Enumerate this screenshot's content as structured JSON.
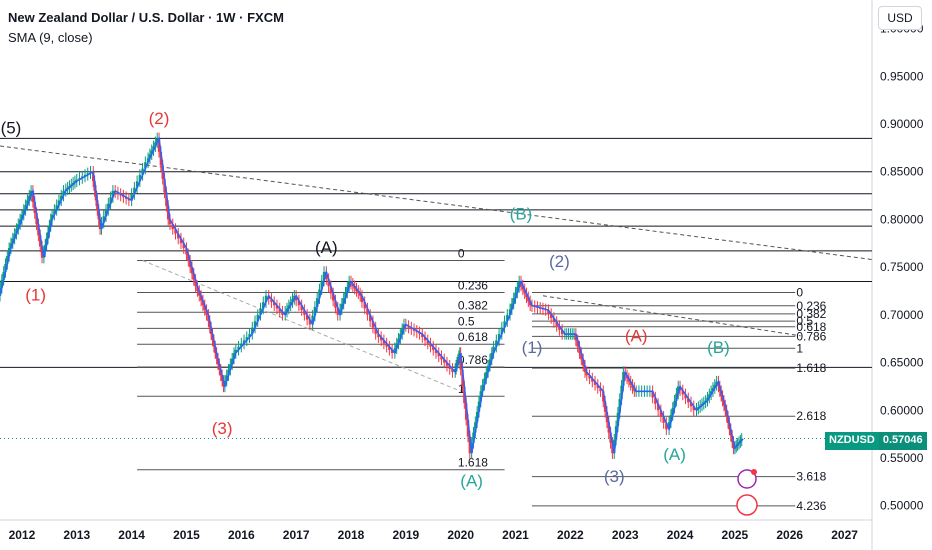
{
  "header": {
    "title": "New Zealand Dollar / U.S. Dollar · 1W · FXCM",
    "indicator": "SMA (9, close)"
  },
  "currency_button": "USD",
  "price_badge": {
    "symbol": "NZDUSD",
    "price": "0.57046"
  },
  "colors": {
    "grid_line": "#d1d4dc",
    "price_line": "#2962ff",
    "up": "#089981",
    "down": "#f23645",
    "wave_red": "#e53935",
    "wave_black": "#131722",
    "wave_blue": "#5b6aa3",
    "wave_teal": "#26a69a"
  },
  "chart_data": {
    "type": "line",
    "x_range": [
      2011.6,
      2027.5
    ],
    "y_range": [
      0.485,
      1.03
    ],
    "x_ticks": [
      {
        "v": 2012,
        "label": "2012"
      },
      {
        "v": 2013,
        "label": "2013"
      },
      {
        "v": 2014,
        "label": "2014"
      },
      {
        "v": 2015,
        "label": "2015"
      },
      {
        "v": 2016,
        "label": "2016"
      },
      {
        "v": 2017,
        "label": "2017"
      },
      {
        "v": 2018,
        "label": "2018"
      },
      {
        "v": 2019,
        "label": "2019"
      },
      {
        "v": 2020,
        "label": "2020"
      },
      {
        "v": 2021,
        "label": "2021"
      },
      {
        "v": 2022,
        "label": "2022"
      },
      {
        "v": 2023,
        "label": "2023"
      },
      {
        "v": 2024,
        "label": "2024"
      },
      {
        "v": 2025,
        "label": "2025"
      },
      {
        "v": 2026,
        "label": "2026"
      },
      {
        "v": 2027,
        "label": "2027"
      }
    ],
    "y_ticks": [
      {
        "v": 1.0,
        "label": "1.00000"
      },
      {
        "v": 0.95,
        "label": "0.95000"
      },
      {
        "v": 0.9,
        "label": "0.90000"
      },
      {
        "v": 0.85,
        "label": "0.85000"
      },
      {
        "v": 0.8,
        "label": "0.80000"
      },
      {
        "v": 0.75,
        "label": "0.75000"
      },
      {
        "v": 0.7,
        "label": "0.70000"
      },
      {
        "v": 0.65,
        "label": "0.65000"
      },
      {
        "v": 0.6,
        "label": "0.60000"
      },
      {
        "v": 0.55,
        "label": "0.55000"
      },
      {
        "v": 0.5,
        "label": "0.50000"
      }
    ],
    "price_series": [
      {
        "x": 2011.6,
        "y": 0.72
      },
      {
        "x": 2011.8,
        "y": 0.77
      },
      {
        "x": 2012.0,
        "y": 0.8
      },
      {
        "x": 2012.2,
        "y": 0.83
      },
      {
        "x": 2012.4,
        "y": 0.76
      },
      {
        "x": 2012.55,
        "y": 0.8
      },
      {
        "x": 2012.8,
        "y": 0.83
      },
      {
        "x": 2013.0,
        "y": 0.84
      },
      {
        "x": 2013.3,
        "y": 0.85
      },
      {
        "x": 2013.45,
        "y": 0.79
      },
      {
        "x": 2013.7,
        "y": 0.83
      },
      {
        "x": 2014.0,
        "y": 0.82
      },
      {
        "x": 2014.3,
        "y": 0.86
      },
      {
        "x": 2014.5,
        "y": 0.885
      },
      {
        "x": 2014.7,
        "y": 0.8
      },
      {
        "x": 2015.0,
        "y": 0.77
      },
      {
        "x": 2015.2,
        "y": 0.73
      },
      {
        "x": 2015.4,
        "y": 0.7
      },
      {
        "x": 2015.55,
        "y": 0.66
      },
      {
        "x": 2015.7,
        "y": 0.625
      },
      {
        "x": 2015.9,
        "y": 0.66
      },
      {
        "x": 2016.2,
        "y": 0.68
      },
      {
        "x": 2016.5,
        "y": 0.72
      },
      {
        "x": 2016.8,
        "y": 0.7
      },
      {
        "x": 2017.0,
        "y": 0.72
      },
      {
        "x": 2017.3,
        "y": 0.69
      },
      {
        "x": 2017.55,
        "y": 0.745
      },
      {
        "x": 2017.8,
        "y": 0.7
      },
      {
        "x": 2018.0,
        "y": 0.735
      },
      {
        "x": 2018.2,
        "y": 0.72
      },
      {
        "x": 2018.5,
        "y": 0.68
      },
      {
        "x": 2018.8,
        "y": 0.66
      },
      {
        "x": 2019.0,
        "y": 0.69
      },
      {
        "x": 2019.3,
        "y": 0.68
      },
      {
        "x": 2019.6,
        "y": 0.66
      },
      {
        "x": 2019.9,
        "y": 0.64
      },
      {
        "x": 2020.0,
        "y": 0.66
      },
      {
        "x": 2020.2,
        "y": 0.555
      },
      {
        "x": 2020.4,
        "y": 0.62
      },
      {
        "x": 2020.6,
        "y": 0.66
      },
      {
        "x": 2020.9,
        "y": 0.7
      },
      {
        "x": 2021.1,
        "y": 0.735
      },
      {
        "x": 2021.3,
        "y": 0.71
      },
      {
        "x": 2021.6,
        "y": 0.705
      },
      {
        "x": 2021.9,
        "y": 0.68
      },
      {
        "x": 2022.1,
        "y": 0.68
      },
      {
        "x": 2022.3,
        "y": 0.64
      },
      {
        "x": 2022.6,
        "y": 0.62
      },
      {
        "x": 2022.8,
        "y": 0.555
      },
      {
        "x": 2023.0,
        "y": 0.64
      },
      {
        "x": 2023.2,
        "y": 0.62
      },
      {
        "x": 2023.5,
        "y": 0.62
      },
      {
        "x": 2023.8,
        "y": 0.58
      },
      {
        "x": 2024.0,
        "y": 0.625
      },
      {
        "x": 2024.3,
        "y": 0.6
      },
      {
        "x": 2024.5,
        "y": 0.61
      },
      {
        "x": 2024.7,
        "y": 0.63
      },
      {
        "x": 2024.85,
        "y": 0.6
      },
      {
        "x": 2025.0,
        "y": 0.56
      },
      {
        "x": 2025.15,
        "y": 0.57
      }
    ],
    "horizontal_lines": [
      0.885,
      0.85,
      0.827,
      0.81,
      0.793,
      0.767,
      0.735,
      0.645
    ],
    "fib_levels": [
      {
        "label": "0",
        "y": 0.757
      },
      {
        "label": "0.236",
        "y": 0.7235
      },
      {
        "label": "0.382",
        "y": 0.7027
      },
      {
        "label": "0.5",
        "y": 0.6859
      },
      {
        "label": "0.618",
        "y": 0.6692
      },
      {
        "label": "0.786",
        "y": 0.6454
      },
      {
        "label": "1",
        "y": 0.6147
      },
      {
        "label": "1.618",
        "y": 0.5377
      }
    ],
    "fib_levels_2": [
      {
        "label": "0",
        "y": 0.7235
      },
      {
        "label": "0.236",
        "y": 0.7095
      },
      {
        "label": "0.382",
        "y": 0.701
      },
      {
        "label": "0.5",
        "y": 0.6935
      },
      {
        "label": "0.618",
        "y": 0.6875
      },
      {
        "label": "0.786",
        "y": 0.6775
      },
      {
        "label": "1",
        "y": 0.665
      },
      {
        "label": "1.618",
        "y": 0.6442
      },
      {
        "label": "2.618",
        "y": 0.5938
      },
      {
        "label": "3.618",
        "y": 0.5305
      },
      {
        "label": "4.236",
        "y": 0.4998
      }
    ],
    "wave_labels": [
      {
        "text": "(5)",
        "x": 2011.8,
        "y": 0.89,
        "color": "wave_black"
      },
      {
        "text": "(1)",
        "x": 2012.25,
        "y": 0.715,
        "color": "wave_red"
      },
      {
        "text": "(2)",
        "x": 2014.5,
        "y": 0.9,
        "color": "wave_red"
      },
      {
        "text": "(3)",
        "x": 2015.65,
        "y": 0.575,
        "color": "wave_red"
      },
      {
        "text": "(A)",
        "x": 2017.55,
        "y": 0.765,
        "color": "wave_black"
      },
      {
        "text": "(B)",
        "x": 2021.1,
        "y": 0.8,
        "color": "wave_teal"
      },
      {
        "text": "(1)",
        "x": 2021.3,
        "y": 0.66,
        "color": "wave_blue"
      },
      {
        "text": "(2)",
        "x": 2021.8,
        "y": 0.75,
        "color": "wave_blue"
      },
      {
        "text": "(A)",
        "x": 2020.2,
        "y": 0.52,
        "color": "wave_teal"
      },
      {
        "text": "(3)",
        "x": 2022.8,
        "y": 0.525,
        "color": "wave_blue"
      },
      {
        "text": "(A)",
        "x": 2023.2,
        "y": 0.672,
        "color": "wave_red"
      },
      {
        "text": "(B)",
        "x": 2024.7,
        "y": 0.66,
        "color": "wave_teal"
      },
      {
        "text": "(A)",
        "x": 2023.9,
        "y": 0.548,
        "color": "wave_teal"
      }
    ]
  }
}
